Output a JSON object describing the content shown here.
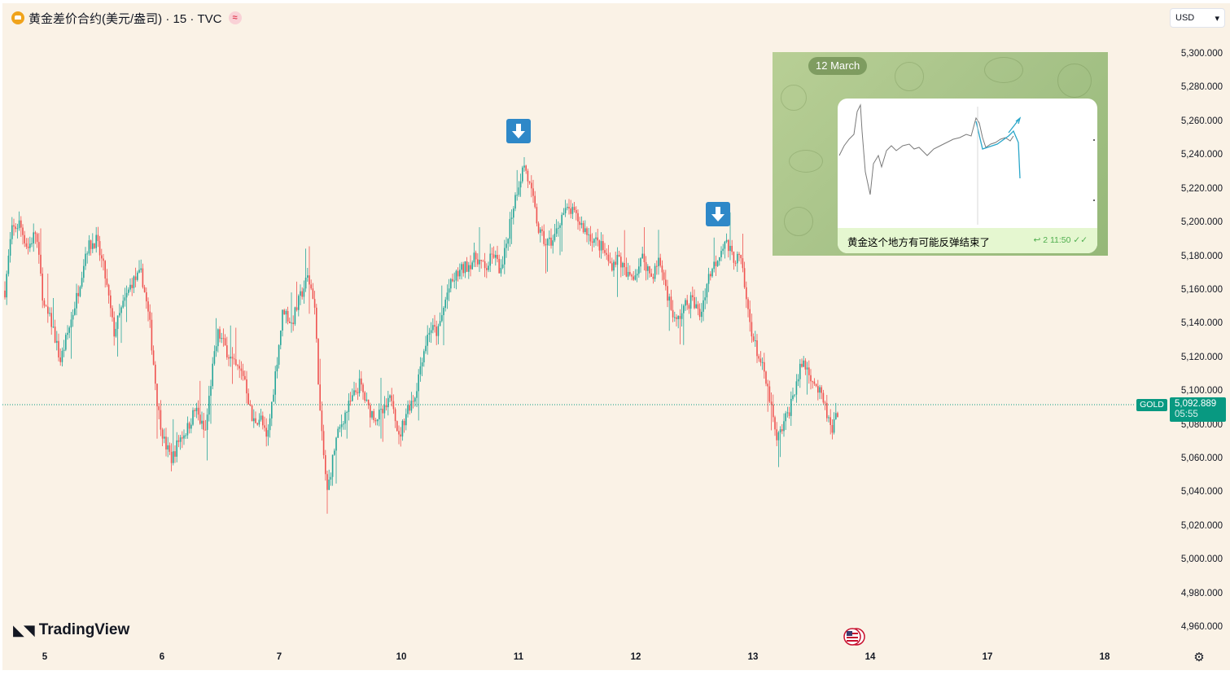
{
  "legend": {
    "title": "黄金差价合约(美元/盎司) · 15 · TVC",
    "currency": "USD"
  },
  "price_axis": {
    "ticks": [
      "5,300.000",
      "5,280.000",
      "5,260.000",
      "5,240.000",
      "5,220.000",
      "5,200.000",
      "5,180.000",
      "5,160.000",
      "5,140.000",
      "5,120.000",
      "5,100.000",
      "5,080.000",
      "5,060.000",
      "5,040.000",
      "5,020.000",
      "5,000.000",
      "4,980.000",
      "4,960.000"
    ]
  },
  "time_axis": {
    "ticks": [
      "5",
      "6",
      "7",
      "10",
      "11",
      "12",
      "13",
      "14",
      "17",
      "18"
    ]
  },
  "last_price": {
    "symbol": "GOLD",
    "price": "5,092.889",
    "countdown": "05:55",
    "value": 5092.889
  },
  "branding": {
    "logo_text": "TradingView"
  },
  "colors": {
    "up": "#26a69a",
    "down": "#ef5350",
    "background": "#faf2e6",
    "marker": "#2e88c8",
    "price_tag": "#089981"
  },
  "telegram": {
    "date": "12 March",
    "message": "黄金这个地方有可能反弹结束了",
    "meta": "2 11:50"
  },
  "chart_data": {
    "type": "candlestick",
    "title": "黄金差价合约(美元/盎司) · 15 · TVC",
    "interval": "15",
    "ylim": [
      4950,
      5310
    ],
    "x_ticks": [
      "5",
      "6",
      "7",
      "10",
      "11",
      "12",
      "13",
      "14",
      "17",
      "18"
    ],
    "grid": false,
    "legend": "top-left",
    "series": [
      {
        "x": [
          "5",
          "6",
          "7",
          "10",
          "11",
          "12",
          "13"
        ],
        "values": [
          5180,
          5055,
          5100,
          5060,
          5235,
          5180,
          5093
        ]
      }
    ],
    "path_points": [
      [
        0,
        5160
      ],
      [
        8,
        5195
      ],
      [
        18,
        5200
      ],
      [
        28,
        5185
      ],
      [
        38,
        5195
      ],
      [
        48,
        5150
      ],
      [
        58,
        5140
      ],
      [
        68,
        5118
      ],
      [
        80,
        5140
      ],
      [
        90,
        5160
      ],
      [
        100,
        5185
      ],
      [
        112,
        5190
      ],
      [
        122,
        5172
      ],
      [
        134,
        5135
      ],
      [
        144,
        5150
      ],
      [
        156,
        5165
      ],
      [
        168,
        5170
      ],
      [
        178,
        5140
      ],
      [
        188,
        5090
      ],
      [
        196,
        5070
      ],
      [
        205,
        5060
      ],
      [
        214,
        5072
      ],
      [
        224,
        5078
      ],
      [
        234,
        5090
      ],
      [
        246,
        5075
      ],
      [
        254,
        5110
      ],
      [
        262,
        5135
      ],
      [
        272,
        5125
      ],
      [
        282,
        5115
      ],
      [
        294,
        5110
      ],
      [
        304,
        5082
      ],
      [
        314,
        5085
      ],
      [
        322,
        5070
      ],
      [
        332,
        5110
      ],
      [
        342,
        5150
      ],
      [
        352,
        5140
      ],
      [
        362,
        5155
      ],
      [
        372,
        5168
      ],
      [
        380,
        5155
      ],
      [
        388,
        5080
      ],
      [
        396,
        5040
      ],
      [
        406,
        5070
      ],
      [
        416,
        5085
      ],
      [
        426,
        5095
      ],
      [
        436,
        5105
      ],
      [
        446,
        5090
      ],
      [
        456,
        5085
      ],
      [
        466,
        5088
      ],
      [
        476,
        5098
      ],
      [
        484,
        5072
      ],
      [
        494,
        5090
      ],
      [
        504,
        5098
      ],
      [
        512,
        5120
      ],
      [
        522,
        5138
      ],
      [
        532,
        5135
      ],
      [
        544,
        5160
      ],
      [
        556,
        5170
      ],
      [
        568,
        5175
      ],
      [
        580,
        5180
      ],
      [
        590,
        5172
      ],
      [
        600,
        5182
      ],
      [
        610,
        5170
      ],
      [
        620,
        5200
      ],
      [
        628,
        5218
      ],
      [
        638,
        5235
      ],
      [
        648,
        5215
      ],
      [
        656,
        5195
      ],
      [
        664,
        5188
      ],
      [
        674,
        5190
      ],
      [
        684,
        5205
      ],
      [
        694,
        5208
      ],
      [
        704,
        5202
      ],
      [
        714,
        5195
      ],
      [
        724,
        5190
      ],
      [
        734,
        5185
      ],
      [
        744,
        5175
      ],
      [
        754,
        5180
      ],
      [
        764,
        5168
      ],
      [
        774,
        5170
      ],
      [
        784,
        5180
      ],
      [
        794,
        5168
      ],
      [
        804,
        5178
      ],
      [
        814,
        5158
      ],
      [
        824,
        5140
      ],
      [
        834,
        5150
      ],
      [
        844,
        5155
      ],
      [
        854,
        5145
      ],
      [
        864,
        5168
      ],
      [
        874,
        5178
      ],
      [
        884,
        5190
      ],
      [
        894,
        5180
      ],
      [
        904,
        5178
      ],
      [
        912,
        5150
      ],
      [
        920,
        5130
      ],
      [
        930,
        5115
      ],
      [
        940,
        5095
      ],
      [
        948,
        5070
      ],
      [
        956,
        5080
      ],
      [
        964,
        5090
      ],
      [
        972,
        5105
      ],
      [
        980,
        5118
      ],
      [
        990,
        5110
      ],
      [
        1000,
        5100
      ],
      [
        1008,
        5090
      ],
      [
        1016,
        5075
      ],
      [
        1024,
        5090
      ]
    ],
    "markers": [
      {
        "type": "down-arrow",
        "x": "11"
      },
      {
        "type": "down-arrow",
        "x": "12"
      }
    ],
    "last_price": 5092.889
  }
}
